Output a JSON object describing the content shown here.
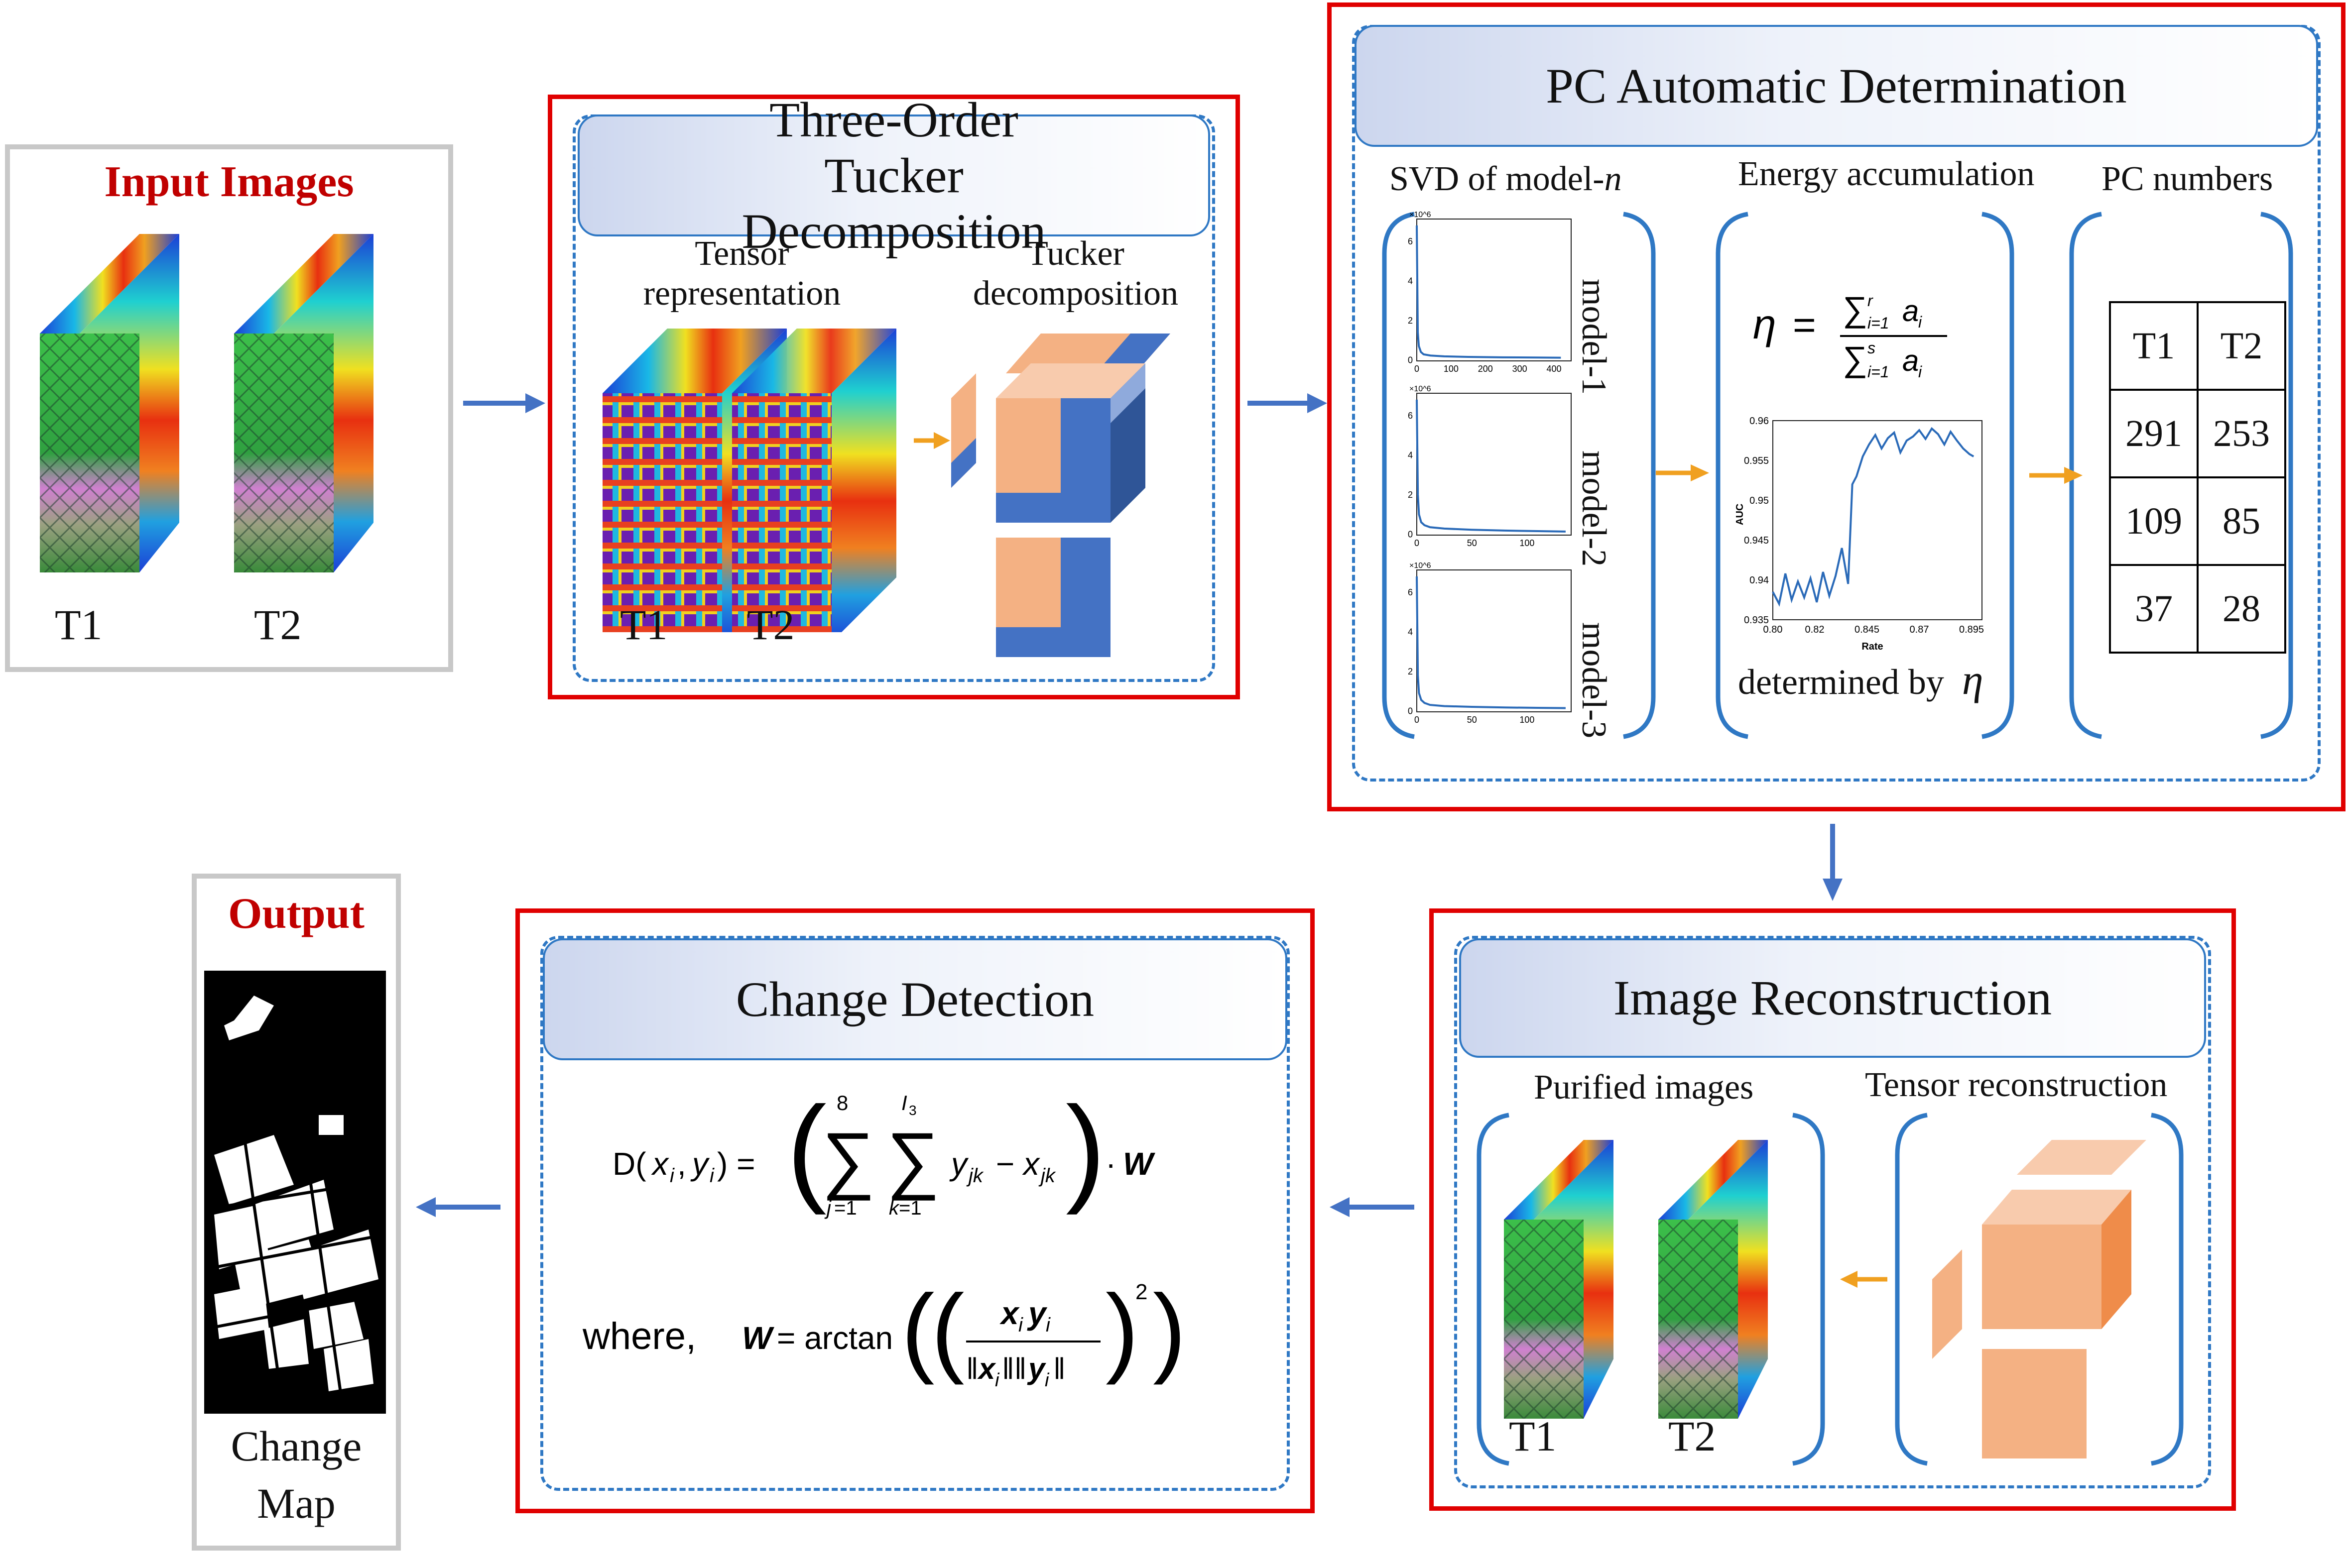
{
  "input": {
    "title": "Input Images",
    "t1": "T1",
    "t2": "T2"
  },
  "tucker": {
    "title": "Three-Order Tucker Decomposition",
    "tensor_label": "Tensor representation",
    "tucker_label": "Tucker decomposition",
    "t1": "T1",
    "t2": "T2"
  },
  "pc": {
    "title": "PC Automatic Determination",
    "svd_label_a": "SVD of model-",
    "svd_label_b": "n",
    "energy_label": "Energy accumulation",
    "pcnum_label": "PC numbers",
    "model_labels": [
      "model-1",
      "model-2",
      "model-3"
    ],
    "eta_formula": "η = Σ_{i=1}^{r} a_i / Σ_{i=1}^{s} a_i",
    "determined_label": "determined by",
    "eta_symbol": "η",
    "table": {
      "header": [
        "T1",
        "T2"
      ],
      "rows": [
        [
          "291",
          "253"
        ],
        [
          "109",
          "85"
        ],
        [
          "37",
          "28"
        ]
      ]
    }
  },
  "reconstruction": {
    "title": "Image Reconstruction",
    "purified_label": "Purified images",
    "tensor_recon_label": "Tensor reconstruction",
    "t1": "T1",
    "t2": "T2"
  },
  "change_detection": {
    "title": "Change Detection",
    "formula_main": "D(x_i, y_i) = ( Σ_{j=1}^{8} Σ_{k=1}^{I_3} y_jk − x_jk ) · W",
    "formula_where": "where,  W = arctan( ( x_i y_i / ||x_i|| ||y_i|| )^2 )"
  },
  "output": {
    "title": "Output",
    "caption_1": "Change",
    "caption_2": "Map"
  },
  "colors": {
    "red_frame": "#e00000",
    "gray_frame": "#c8c8c8",
    "dashed_blue": "#2f78c4",
    "arrow_blue": "#4472c4",
    "arrow_orange": "#f0a020",
    "title_red": "#c00000",
    "tucker_blue": "#4472c4",
    "tucker_peach": "#f4b183",
    "recon_orange": "#f4b183"
  },
  "chart_data": [
    {
      "type": "line",
      "title": "",
      "xlabel": "",
      "ylabel": "",
      "y_multiplier": "×10^6",
      "xticks": [
        "0",
        "100",
        "200",
        "300",
        "400"
      ],
      "yticks": [
        "0",
        "2",
        "4",
        "6"
      ],
      "ylim": [
        0,
        7
      ],
      "xlim": [
        0,
        450
      ],
      "series": [
        {
          "x": [
            0,
            3,
            6,
            12,
            20,
            40,
            80,
            150,
            250,
            350,
            420
          ],
          "y": [
            6.8,
            1.4,
            0.7,
            0.4,
            0.28,
            0.22,
            0.18,
            0.15,
            0.13,
            0.12,
            0.11
          ]
        }
      ]
    },
    {
      "type": "line",
      "title": "",
      "xlabel": "",
      "ylabel": "",
      "y_multiplier": "×10^6",
      "xticks": [
        "0",
        "50",
        "100"
      ],
      "yticks": [
        "0",
        "2",
        "4",
        "6"
      ],
      "ylim": [
        0,
        7
      ],
      "xlim": [
        0,
        140
      ],
      "series": [
        {
          "x": [
            0,
            1,
            2,
            4,
            7,
            12,
            25,
            50,
            80,
            110,
            135
          ],
          "y": [
            6.8,
            2.0,
            1.0,
            0.6,
            0.45,
            0.35,
            0.28,
            0.22,
            0.18,
            0.15,
            0.13
          ]
        }
      ]
    },
    {
      "type": "line",
      "title": "",
      "xlabel": "",
      "ylabel": "",
      "y_multiplier": "×10^6",
      "xticks": [
        "0",
        "50",
        "100"
      ],
      "yticks": [
        "0",
        "2",
        "4",
        "6"
      ],
      "ylim": [
        0,
        7
      ],
      "xlim": [
        0,
        140
      ],
      "series": [
        {
          "x": [
            0,
            1,
            2,
            4,
            7,
            12,
            25,
            50,
            80,
            110,
            135
          ],
          "y": [
            6.8,
            1.8,
            0.9,
            0.55,
            0.4,
            0.3,
            0.24,
            0.2,
            0.17,
            0.15,
            0.14
          ]
        }
      ]
    },
    {
      "type": "line",
      "title": "",
      "xlabel": "Rate",
      "ylabel": "AUC",
      "xticks": [
        "0.80",
        "0.82",
        "0.845",
        "0.87",
        "0.895"
      ],
      "yticks": [
        "0.935",
        "0.94",
        "0.945",
        "0.95",
        "0.955",
        "0.96"
      ],
      "xlim": [
        0.8,
        0.9
      ],
      "ylim": [
        0.935,
        0.96
      ],
      "series": [
        {
          "x": [
            0.8,
            0.803,
            0.806,
            0.809,
            0.812,
            0.815,
            0.818,
            0.821,
            0.824,
            0.827,
            0.83,
            0.833,
            0.836,
            0.838,
            0.84,
            0.843,
            0.846,
            0.849,
            0.852,
            0.855,
            0.858,
            0.861,
            0.864,
            0.867,
            0.87,
            0.873,
            0.876,
            0.879,
            0.882,
            0.885,
            0.888,
            0.891,
            0.894,
            0.896
          ],
          "y": [
            0.9385,
            0.937,
            0.9408,
            0.9375,
            0.9398,
            0.9378,
            0.9402,
            0.9372,
            0.941,
            0.938,
            0.9405,
            0.944,
            0.9395,
            0.952,
            0.953,
            0.9555,
            0.957,
            0.9582,
            0.9565,
            0.9578,
            0.9585,
            0.956,
            0.9575,
            0.958,
            0.9588,
            0.9577,
            0.959,
            0.9583,
            0.957,
            0.9586,
            0.9575,
            0.9565,
            0.9558,
            0.9555
          ]
        }
      ]
    }
  ]
}
